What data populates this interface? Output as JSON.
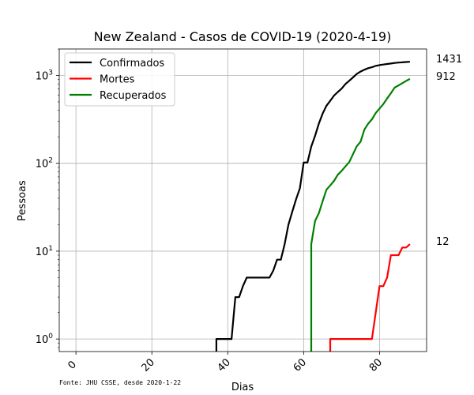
{
  "chart_data": {
    "type": "line",
    "title": "New Zealand - Casos de COVID-19 (2020-4-19)",
    "xlabel": "Dias",
    "ylabel": "Pessoas",
    "yscale": "log",
    "xlim": [
      -4.4,
      92.4
    ],
    "ylim": [
      0.72,
      2000
    ],
    "grid": true,
    "legend_position": "top-left",
    "x_ticks": [
      0,
      20,
      40,
      60,
      80
    ],
    "x_tick_labels": [
      "0",
      "20",
      "40",
      "60",
      "80"
    ],
    "y_ticks": [
      1,
      10,
      100,
      1000
    ],
    "y_tick_labels": [
      {
        "base": "10",
        "exp": "0"
      },
      {
        "base": "10",
        "exp": "1"
      },
      {
        "base": "10",
        "exp": "2"
      },
      {
        "base": "10",
        "exp": "3"
      }
    ],
    "source_note": "Fonte: JHU CSSE, desde 2020-1-22",
    "series": [
      {
        "name": "Confirmados",
        "color": "#000000",
        "end_label": "1431",
        "points": [
          [
            37,
            0.6
          ],
          [
            37,
            1
          ],
          [
            41,
            1
          ],
          [
            42,
            3
          ],
          [
            43,
            3
          ],
          [
            44,
            4
          ],
          [
            45,
            5
          ],
          [
            46,
            5
          ],
          [
            47,
            5
          ],
          [
            48,
            5
          ],
          [
            49,
            5
          ],
          [
            50,
            5
          ],
          [
            51,
            5
          ],
          [
            52,
            6
          ],
          [
            53,
            8
          ],
          [
            54,
            8
          ],
          [
            55,
            12
          ],
          [
            56,
            20
          ],
          [
            57,
            28
          ],
          [
            58,
            39
          ],
          [
            59,
            52
          ],
          [
            60,
            102
          ],
          [
            61,
            102
          ],
          [
            62,
            155
          ],
          [
            63,
            205
          ],
          [
            64,
            283
          ],
          [
            65,
            368
          ],
          [
            66,
            451
          ],
          [
            67,
            514
          ],
          [
            68,
            589
          ],
          [
            69,
            647
          ],
          [
            70,
            708
          ],
          [
            71,
            797
          ],
          [
            72,
            868
          ],
          [
            73,
            950
          ],
          [
            74,
            1039
          ],
          [
            75,
            1106
          ],
          [
            76,
            1160
          ],
          [
            77,
            1210
          ],
          [
            78,
            1239
          ],
          [
            79,
            1283
          ],
          [
            80,
            1312
          ],
          [
            81,
            1330
          ],
          [
            82,
            1349
          ],
          [
            83,
            1366
          ],
          [
            84,
            1386
          ],
          [
            85,
            1401
          ],
          [
            86,
            1409
          ],
          [
            87,
            1422
          ],
          [
            88,
            1431
          ]
        ]
      },
      {
        "name": "Mortes",
        "color": "#ff0000",
        "end_label": "12",
        "points": [
          [
            67,
            0.6
          ],
          [
            67,
            1
          ],
          [
            68,
            1
          ],
          [
            69,
            1
          ],
          [
            70,
            1
          ],
          [
            71,
            1
          ],
          [
            72,
            1
          ],
          [
            73,
            1
          ],
          [
            74,
            1
          ],
          [
            75,
            1
          ],
          [
            76,
            1
          ],
          [
            77,
            1
          ],
          [
            78,
            1
          ],
          [
            79,
            2
          ],
          [
            80,
            4
          ],
          [
            81,
            4
          ],
          [
            82,
            5
          ],
          [
            83,
            9
          ],
          [
            84,
            9
          ],
          [
            85,
            9
          ],
          [
            86,
            11
          ],
          [
            87,
            11
          ],
          [
            88,
            12
          ]
        ]
      },
      {
        "name": "Recuperados",
        "color": "#008000",
        "end_label": "912",
        "points": [
          [
            62,
            0.6
          ],
          [
            62,
            12
          ],
          [
            63,
            22
          ],
          [
            64,
            27
          ],
          [
            65,
            37
          ],
          [
            66,
            50
          ],
          [
            67,
            56
          ],
          [
            68,
            63
          ],
          [
            69,
            74
          ],
          [
            70,
            82
          ],
          [
            71,
            92
          ],
          [
            72,
            103
          ],
          [
            73,
            127
          ],
          [
            74,
            156
          ],
          [
            75,
            176
          ],
          [
            76,
            241
          ],
          [
            77,
            282
          ],
          [
            78,
            317
          ],
          [
            79,
            373
          ],
          [
            80,
            420
          ],
          [
            81,
            471
          ],
          [
            82,
            546
          ],
          [
            83,
            628
          ],
          [
            84,
            728
          ],
          [
            85,
            770
          ],
          [
            86,
            816
          ],
          [
            87,
            867
          ],
          [
            88,
            912
          ]
        ]
      }
    ]
  }
}
